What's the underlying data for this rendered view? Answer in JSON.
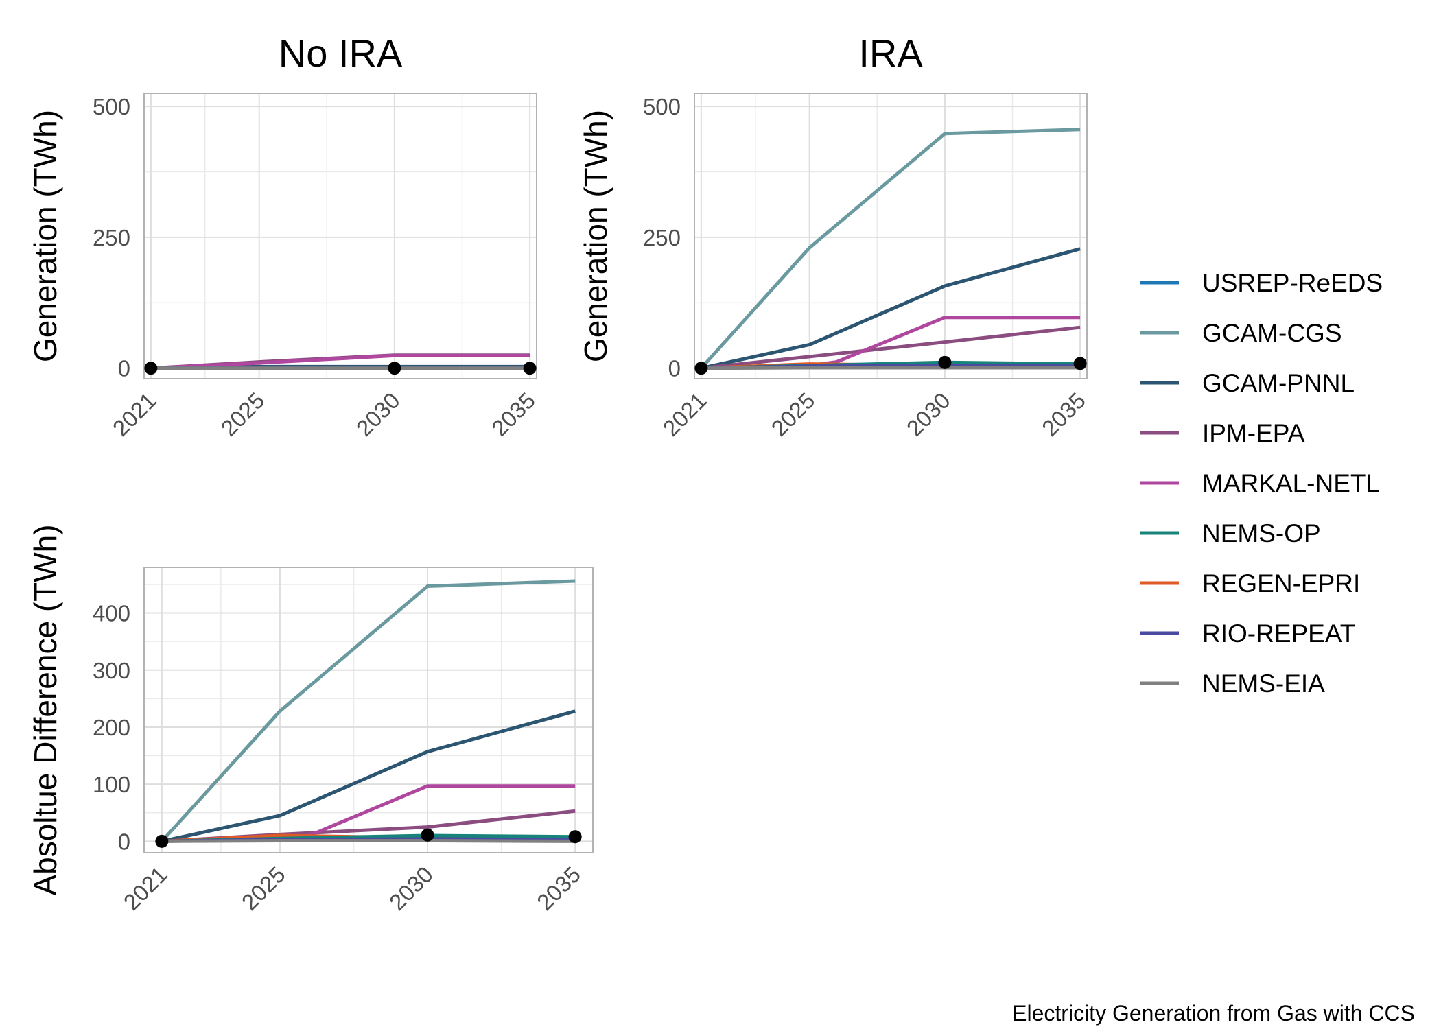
{
  "caption": "Electricity Generation from Gas with CCS",
  "legend": [
    {
      "name": "USREP-ReEDS",
      "color": "#1f78b4"
    },
    {
      "name": "GCAM-CGS",
      "color": "#6a9aa0"
    },
    {
      "name": "GCAM-PNNL",
      "color": "#2b5570"
    },
    {
      "name": "IPM-EPA",
      "color": "#8b4c80"
    },
    {
      "name": "MARKAL-NETL",
      "color": "#b0479e"
    },
    {
      "name": "NEMS-OP",
      "color": "#18837a"
    },
    {
      "name": "REGEN-EPRI",
      "color": "#e05a26"
    },
    {
      "name": "RIO-REPEAT",
      "color": "#4a4aa0"
    },
    {
      "name": "NEMS-EIA",
      "color": "#808080"
    }
  ],
  "chart_data": [
    {
      "type": "line",
      "title": "No IRA",
      "ylabel": "Generation (TWh)",
      "xlabel": "",
      "x_ticks": [
        2021,
        2025,
        2030,
        2035
      ],
      "y_ticks": [
        0,
        250,
        500
      ],
      "xlim": [
        2020.75,
        2035.25
      ],
      "ylim": [
        -20,
        525
      ],
      "grid": true,
      "series": [
        {
          "name": "GCAM-CGS",
          "x": [
            2021,
            2025,
            2030,
            2035
          ],
          "y": [
            0,
            0,
            0,
            0
          ]
        },
        {
          "name": "GCAM-PNNL",
          "x": [
            2021,
            2025,
            2030,
            2035
          ],
          "y": [
            0,
            3,
            3,
            3
          ]
        },
        {
          "name": "IPM-EPA",
          "x": [
            2021,
            2025,
            2030,
            2035
          ],
          "y": [
            0,
            12,
            25,
            25
          ]
        },
        {
          "name": "MARKAL-NETL",
          "x": [
            2021,
            2025,
            2030,
            2035
          ],
          "y": [
            0,
            10,
            24,
            24
          ]
        },
        {
          "name": "NEMS-OP",
          "x": [
            2021,
            2025,
            2030,
            2035
          ],
          "y": [
            0,
            0,
            0,
            0
          ]
        },
        {
          "name": "RIO-REPEAT",
          "x": [
            2021,
            2025,
            2030,
            2035
          ],
          "y": [
            0,
            0,
            0,
            0
          ]
        },
        {
          "name": "NEMS-EIA",
          "x": [
            2021,
            2025,
            2030,
            2035
          ],
          "y": [
            0,
            0,
            0,
            0
          ]
        }
      ],
      "points": {
        "name": "NEMS-EIA",
        "x": [
          2021,
          2030,
          2035
        ],
        "y": [
          0,
          0,
          0
        ]
      }
    },
    {
      "type": "line",
      "title": "IRA",
      "ylabel": "Generation (TWh)",
      "xlabel": "",
      "x_ticks": [
        2021,
        2025,
        2030,
        2035
      ],
      "y_ticks": [
        0,
        250,
        500
      ],
      "xlim": [
        2020.75,
        2035.25
      ],
      "ylim": [
        -20,
        525
      ],
      "grid": true,
      "series": [
        {
          "name": "GCAM-CGS",
          "x": [
            2021,
            2025,
            2030,
            2035
          ],
          "y": [
            0,
            230,
            448,
            456
          ]
        },
        {
          "name": "GCAM-PNNL",
          "x": [
            2021,
            2025,
            2030,
            2035
          ],
          "y": [
            0,
            45,
            157,
            228
          ]
        },
        {
          "name": "IPM-EPA",
          "x": [
            2021,
            2025,
            2030,
            2035
          ],
          "y": [
            0,
            22,
            50,
            78
          ]
        },
        {
          "name": "MARKAL-NETL",
          "x": [
            2021,
            2025,
            2026,
            2030,
            2035
          ],
          "y": [
            0,
            5,
            12,
            97,
            97
          ]
        },
        {
          "name": "REGEN-EPRI",
          "x": [
            2021,
            2025,
            2030,
            2035
          ],
          "y": [
            0,
            8,
            5,
            4
          ]
        },
        {
          "name": "NEMS-OP",
          "x": [
            2021,
            2025,
            2030,
            2035
          ],
          "y": [
            0,
            5,
            11,
            8
          ]
        },
        {
          "name": "RIO-REPEAT",
          "x": [
            2021,
            2025,
            2030,
            2035
          ],
          "y": [
            0,
            4,
            5,
            4
          ]
        },
        {
          "name": "NEMS-EIA",
          "x": [
            2021,
            2025,
            2030,
            2035
          ],
          "y": [
            0,
            1,
            1,
            1
          ]
        }
      ],
      "points": {
        "name": "NEMS-EIA",
        "x": [
          2021,
          2030,
          2035
        ],
        "y": [
          0,
          11,
          9
        ]
      }
    },
    {
      "type": "line",
      "title": "",
      "ylabel": "Absoltue Difference (TWh)",
      "xlabel": "",
      "x_ticks": [
        2021,
        2025,
        2030,
        2035
      ],
      "y_ticks": [
        0,
        100,
        200,
        300,
        400
      ],
      "xlim": [
        2020.4,
        2035.6
      ],
      "ylim": [
        -20,
        480
      ],
      "grid": true,
      "series": [
        {
          "name": "GCAM-CGS",
          "x": [
            2021,
            2025,
            2030,
            2035
          ],
          "y": [
            0,
            228,
            447,
            456
          ]
        },
        {
          "name": "GCAM-PNNL",
          "x": [
            2021,
            2025,
            2030,
            2035
          ],
          "y": [
            0,
            45,
            157,
            228
          ]
        },
        {
          "name": "IPM-EPA",
          "x": [
            2021,
            2025,
            2030,
            2035
          ],
          "y": [
            0,
            12,
            25,
            53
          ]
        },
        {
          "name": "MARKAL-NETL",
          "x": [
            2021,
            2025,
            2026,
            2030,
            2035
          ],
          "y": [
            0,
            5,
            10,
            97,
            97
          ]
        },
        {
          "name": "REGEN-EPRI",
          "x": [
            2021,
            2025,
            2030,
            2035
          ],
          "y": [
            0,
            10,
            6,
            5
          ]
        },
        {
          "name": "NEMS-OP",
          "x": [
            2021,
            2025,
            2030,
            2035
          ],
          "y": [
            0,
            5,
            10,
            8
          ]
        },
        {
          "name": "RIO-REPEAT",
          "x": [
            2021,
            2025,
            2030,
            2035
          ],
          "y": [
            0,
            3,
            4,
            3
          ]
        },
        {
          "name": "NEMS-EIA",
          "x": [
            2021,
            2025,
            2030,
            2035
          ],
          "y": [
            0,
            1,
            1,
            0
          ]
        }
      ],
      "points": {
        "name": "NEMS-EIA",
        "x": [
          2021,
          2030,
          2035
        ],
        "y": [
          0,
          11,
          8
        ]
      }
    }
  ]
}
